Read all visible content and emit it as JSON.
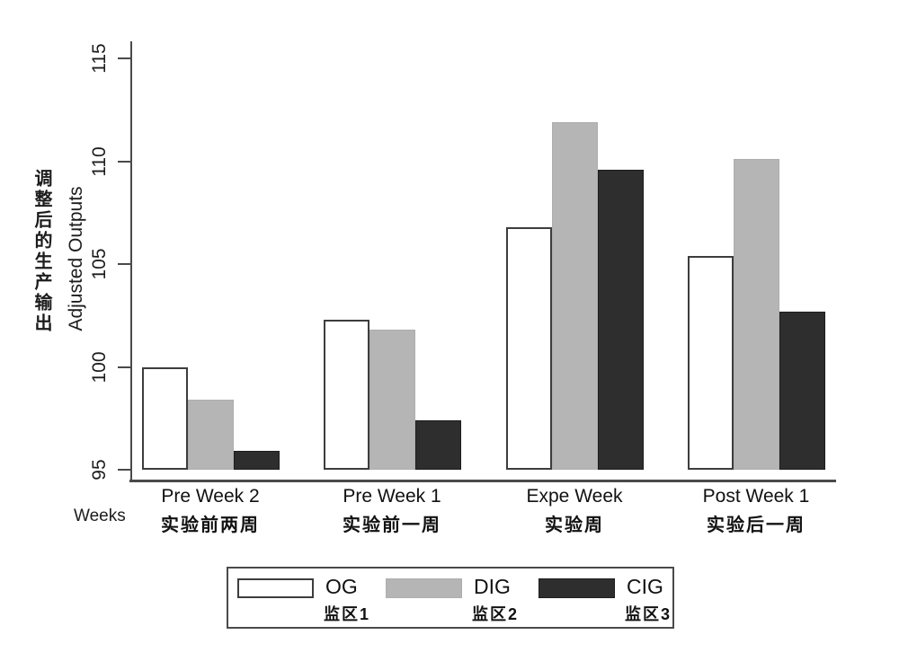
{
  "chart_data": {
    "type": "bar",
    "title": "",
    "x_axis_label": "Weeks",
    "y_axis_title_zh": "调整后的生产输出",
    "y_axis_title_en": "Adjusted Outputs",
    "ylim": [
      95,
      115
    ],
    "y_ticks": [
      95,
      100,
      105,
      110,
      115
    ],
    "grid": false,
    "legend_position": "bottom",
    "categories": [
      {
        "en": "Pre Week 2",
        "zh": "实验前两周"
      },
      {
        "en": "Pre Week 1",
        "zh": "实验前一周"
      },
      {
        "en": "Expe Week",
        "zh": "实验周"
      },
      {
        "en": "Post Week 1",
        "zh": "实验后一周"
      }
    ],
    "series": [
      {
        "name": "OG",
        "name_zh": "监区1",
        "fill": "#ffffff",
        "border": "#3d3d3d",
        "values": [
          100.0,
          102.3,
          106.8,
          105.4
        ]
      },
      {
        "name": "DIG",
        "name_zh": "监区2",
        "fill": "#b5b5b5",
        "border": "#aeaeae",
        "values": [
          98.4,
          101.8,
          111.9,
          110.1
        ]
      },
      {
        "name": "CIG",
        "name_zh": "监区3",
        "fill": "#2e2e2e",
        "border": "#1d1d1d",
        "values": [
          95.9,
          97.4,
          109.6,
          102.7
        ]
      }
    ]
  }
}
